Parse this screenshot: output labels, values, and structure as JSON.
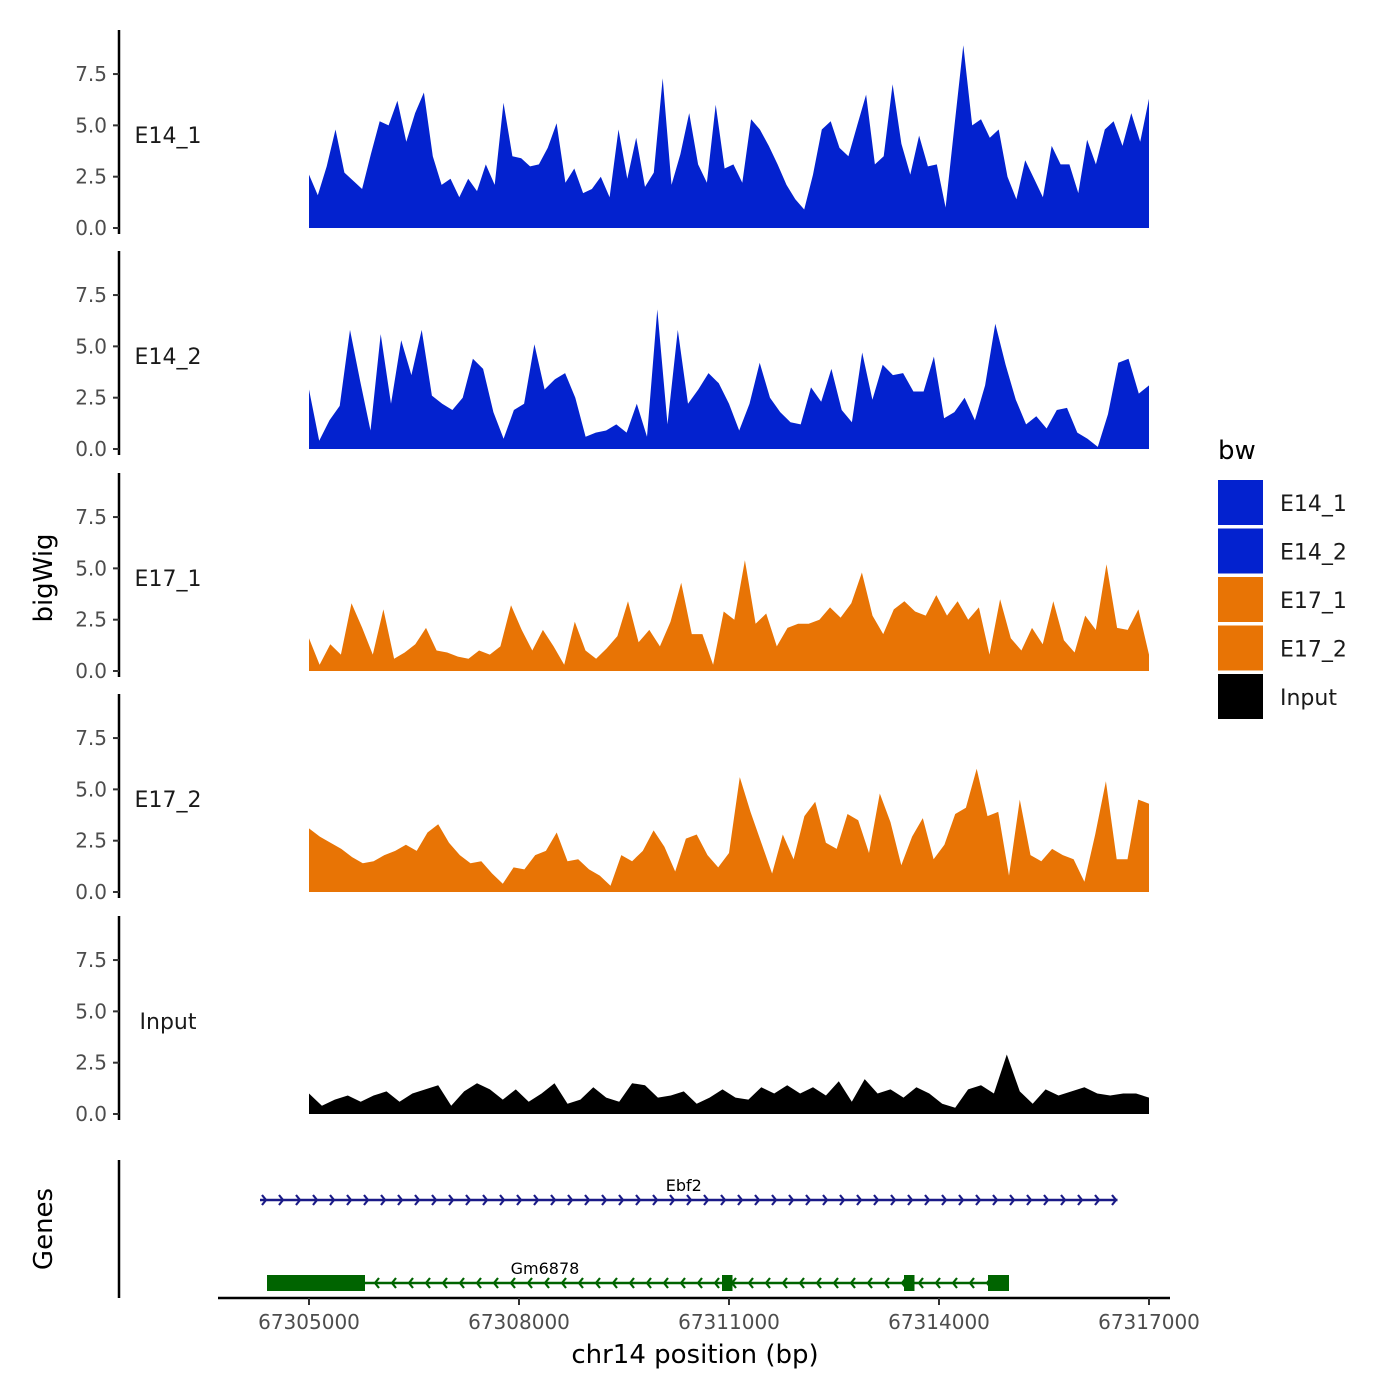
{
  "chart_data": {
    "type": "area",
    "title": "",
    "ylabel": "bigWig",
    "xlabel": "chr14 position (bp)",
    "xlim": [
      67303700,
      67317300
    ],
    "ylim": [
      0,
      9.5
    ],
    "y_ticks": [
      "0.0",
      "2.5",
      "5.0",
      "7.5"
    ],
    "x_ticks": [
      "67305000",
      "67308000",
      "67311000",
      "67314000",
      "67317000"
    ],
    "x_start": 67305000,
    "x_step": 200,
    "legend": {
      "title": "bw",
      "position": "right",
      "entries": [
        "E14_1",
        "E14_2",
        "E17_1",
        "E17_2",
        "Input"
      ]
    },
    "series": [
      {
        "name": "E14_1",
        "color": "#0322CF",
        "values": [
          2.6,
          1.6,
          3.0,
          4.8,
          2.7,
          2.3,
          1.9,
          3.6,
          5.2,
          5.0,
          6.2,
          4.2,
          5.6,
          6.6,
          3.5,
          2.1,
          2.4,
          1.5,
          2.4,
          1.8,
          3.1,
          2.1,
          6.1,
          3.5,
          3.4,
          3.0,
          3.1,
          3.9,
          5.1,
          2.2,
          2.9,
          1.7,
          1.9,
          2.5,
          1.5,
          4.8,
          2.4,
          4.4,
          2.0,
          2.7,
          7.3,
          2.1,
          3.6,
          5.6,
          3.1,
          2.2,
          6.0,
          2.9,
          3.1,
          2.2,
          5.3,
          4.8,
          4.0,
          3.1,
          2.1,
          1.4,
          0.9,
          2.6,
          4.8,
          5.2,
          3.9,
          3.5,
          5.0,
          6.5,
          3.1,
          3.5,
          7.0,
          4.1,
          2.6,
          4.5,
          3.0,
          3.1,
          1.0,
          5.0,
          8.9,
          5.0,
          5.3,
          4.4,
          4.8,
          2.5,
          1.4,
          3.3,
          2.4,
          1.5,
          4.0,
          3.1,
          3.1,
          1.7,
          4.3,
          3.1,
          4.8,
          5.2,
          4.0,
          5.6,
          4.2,
          6.3
        ]
      },
      {
        "name": "E14_2",
        "color": "#0322CF",
        "values": [
          2.9,
          0.4,
          1.4,
          2.1,
          5.8,
          3.3,
          0.9,
          5.6,
          2.2,
          5.3,
          3.6,
          5.8,
          2.6,
          2.2,
          1.9,
          2.5,
          4.4,
          3.9,
          1.8,
          0.5,
          1.9,
          2.2,
          5.1,
          2.9,
          3.4,
          3.7,
          2.5,
          0.6,
          0.8,
          0.9,
          1.2,
          0.8,
          2.2,
          0.6,
          6.8,
          1.2,
          5.8,
          2.2,
          2.9,
          3.7,
          3.2,
          2.2,
          0.9,
          2.2,
          4.2,
          2.5,
          1.8,
          1.3,
          1.2,
          3.0,
          2.3,
          3.9,
          1.9,
          1.3,
          4.7,
          2.4,
          4.1,
          3.6,
          3.7,
          2.8,
          2.8,
          4.5,
          1.5,
          1.8,
          2.5,
          1.4,
          3.1,
          6.1,
          4.1,
          2.4,
          1.2,
          1.6,
          1.0,
          1.9,
          2.0,
          0.8,
          0.5,
          0.1,
          1.7,
          4.2,
          4.4,
          2.7,
          3.1
        ]
      },
      {
        "name": "E17_1",
        "color": "#E87405",
        "values": [
          1.6,
          0.3,
          1.3,
          0.8,
          3.3,
          2.1,
          0.8,
          3.0,
          0.6,
          0.9,
          1.3,
          2.1,
          1.0,
          0.9,
          0.7,
          0.6,
          1.0,
          0.8,
          1.2,
          3.2,
          2.0,
          1.0,
          2.0,
          1.2,
          0.3,
          2.4,
          1.0,
          0.6,
          1.1,
          1.7,
          3.4,
          1.4,
          2.0,
          1.2,
          2.4,
          4.3,
          1.8,
          1.8,
          0.3,
          2.9,
          2.5,
          5.4,
          2.3,
          2.8,
          1.2,
          2.1,
          2.3,
          2.3,
          2.5,
          3.1,
          2.6,
          3.3,
          4.8,
          2.7,
          1.8,
          3.0,
          3.4,
          2.9,
          2.7,
          3.7,
          2.7,
          3.4,
          2.5,
          3.1,
          0.8,
          3.5,
          1.6,
          1.0,
          2.1,
          1.3,
          3.4,
          1.5,
          0.9,
          2.7,
          2.0,
          5.2,
          2.1,
          2.0,
          3.0,
          0.8
        ]
      },
      {
        "name": "E17_2",
        "color": "#E87405",
        "values": [
          3.1,
          2.7,
          2.4,
          2.1,
          1.7,
          1.4,
          1.5,
          1.8,
          2.0,
          2.3,
          2.0,
          2.9,
          3.3,
          2.4,
          1.8,
          1.4,
          1.5,
          0.9,
          0.4,
          1.2,
          1.1,
          1.8,
          2.0,
          2.9,
          1.5,
          1.6,
          1.1,
          0.8,
          0.3,
          1.8,
          1.5,
          2.0,
          3.0,
          2.2,
          1.0,
          2.6,
          2.8,
          1.8,
          1.2,
          1.9,
          5.6,
          3.9,
          2.4,
          0.9,
          2.8,
          1.6,
          3.7,
          4.4,
          2.4,
          2.1,
          3.8,
          3.5,
          1.9,
          4.8,
          3.4,
          1.3,
          2.7,
          3.6,
          1.6,
          2.3,
          3.8,
          4.1,
          6.0,
          3.7,
          3.9,
          0.8,
          4.5,
          1.8,
          1.5,
          2.1,
          1.8,
          1.6,
          0.5,
          2.8,
          5.4,
          1.6,
          1.6,
          4.5,
          4.3
        ]
      },
      {
        "name": "Input",
        "color": "#000000",
        "values": [
          1.0,
          0.4,
          0.7,
          0.9,
          0.6,
          0.9,
          1.1,
          0.6,
          1.0,
          1.2,
          1.4,
          0.4,
          1.1,
          1.5,
          1.2,
          0.7,
          1.2,
          0.6,
          1.0,
          1.5,
          0.5,
          0.7,
          1.3,
          0.8,
          0.6,
          1.5,
          1.4,
          0.8,
          0.9,
          1.1,
          0.5,
          0.8,
          1.2,
          0.8,
          0.7,
          1.3,
          1.0,
          1.4,
          1.0,
          1.3,
          0.9,
          1.6,
          0.6,
          1.7,
          1.0,
          1.2,
          0.8,
          1.3,
          1.0,
          0.5,
          0.3,
          1.2,
          1.4,
          1.0,
          2.9,
          1.1,
          0.5,
          1.2,
          0.9,
          1.1,
          1.3,
          1.0,
          0.9,
          1.0,
          1.0,
          0.8
        ]
      }
    ],
    "genes": [
      {
        "name": "Ebf2",
        "strand": "+",
        "color": "#1A1A87",
        "start": 67304300,
        "end": 67316550,
        "exons": []
      },
      {
        "name": "Gm6878",
        "strand": "-",
        "color": "#006400",
        "start": 67304400,
        "end": 67315000,
        "exons": [
          [
            67304400,
            67305800
          ],
          [
            67310900,
            67311050
          ],
          [
            67313500,
            67313650
          ],
          [
            67314700,
            67315000
          ]
        ]
      }
    ]
  }
}
